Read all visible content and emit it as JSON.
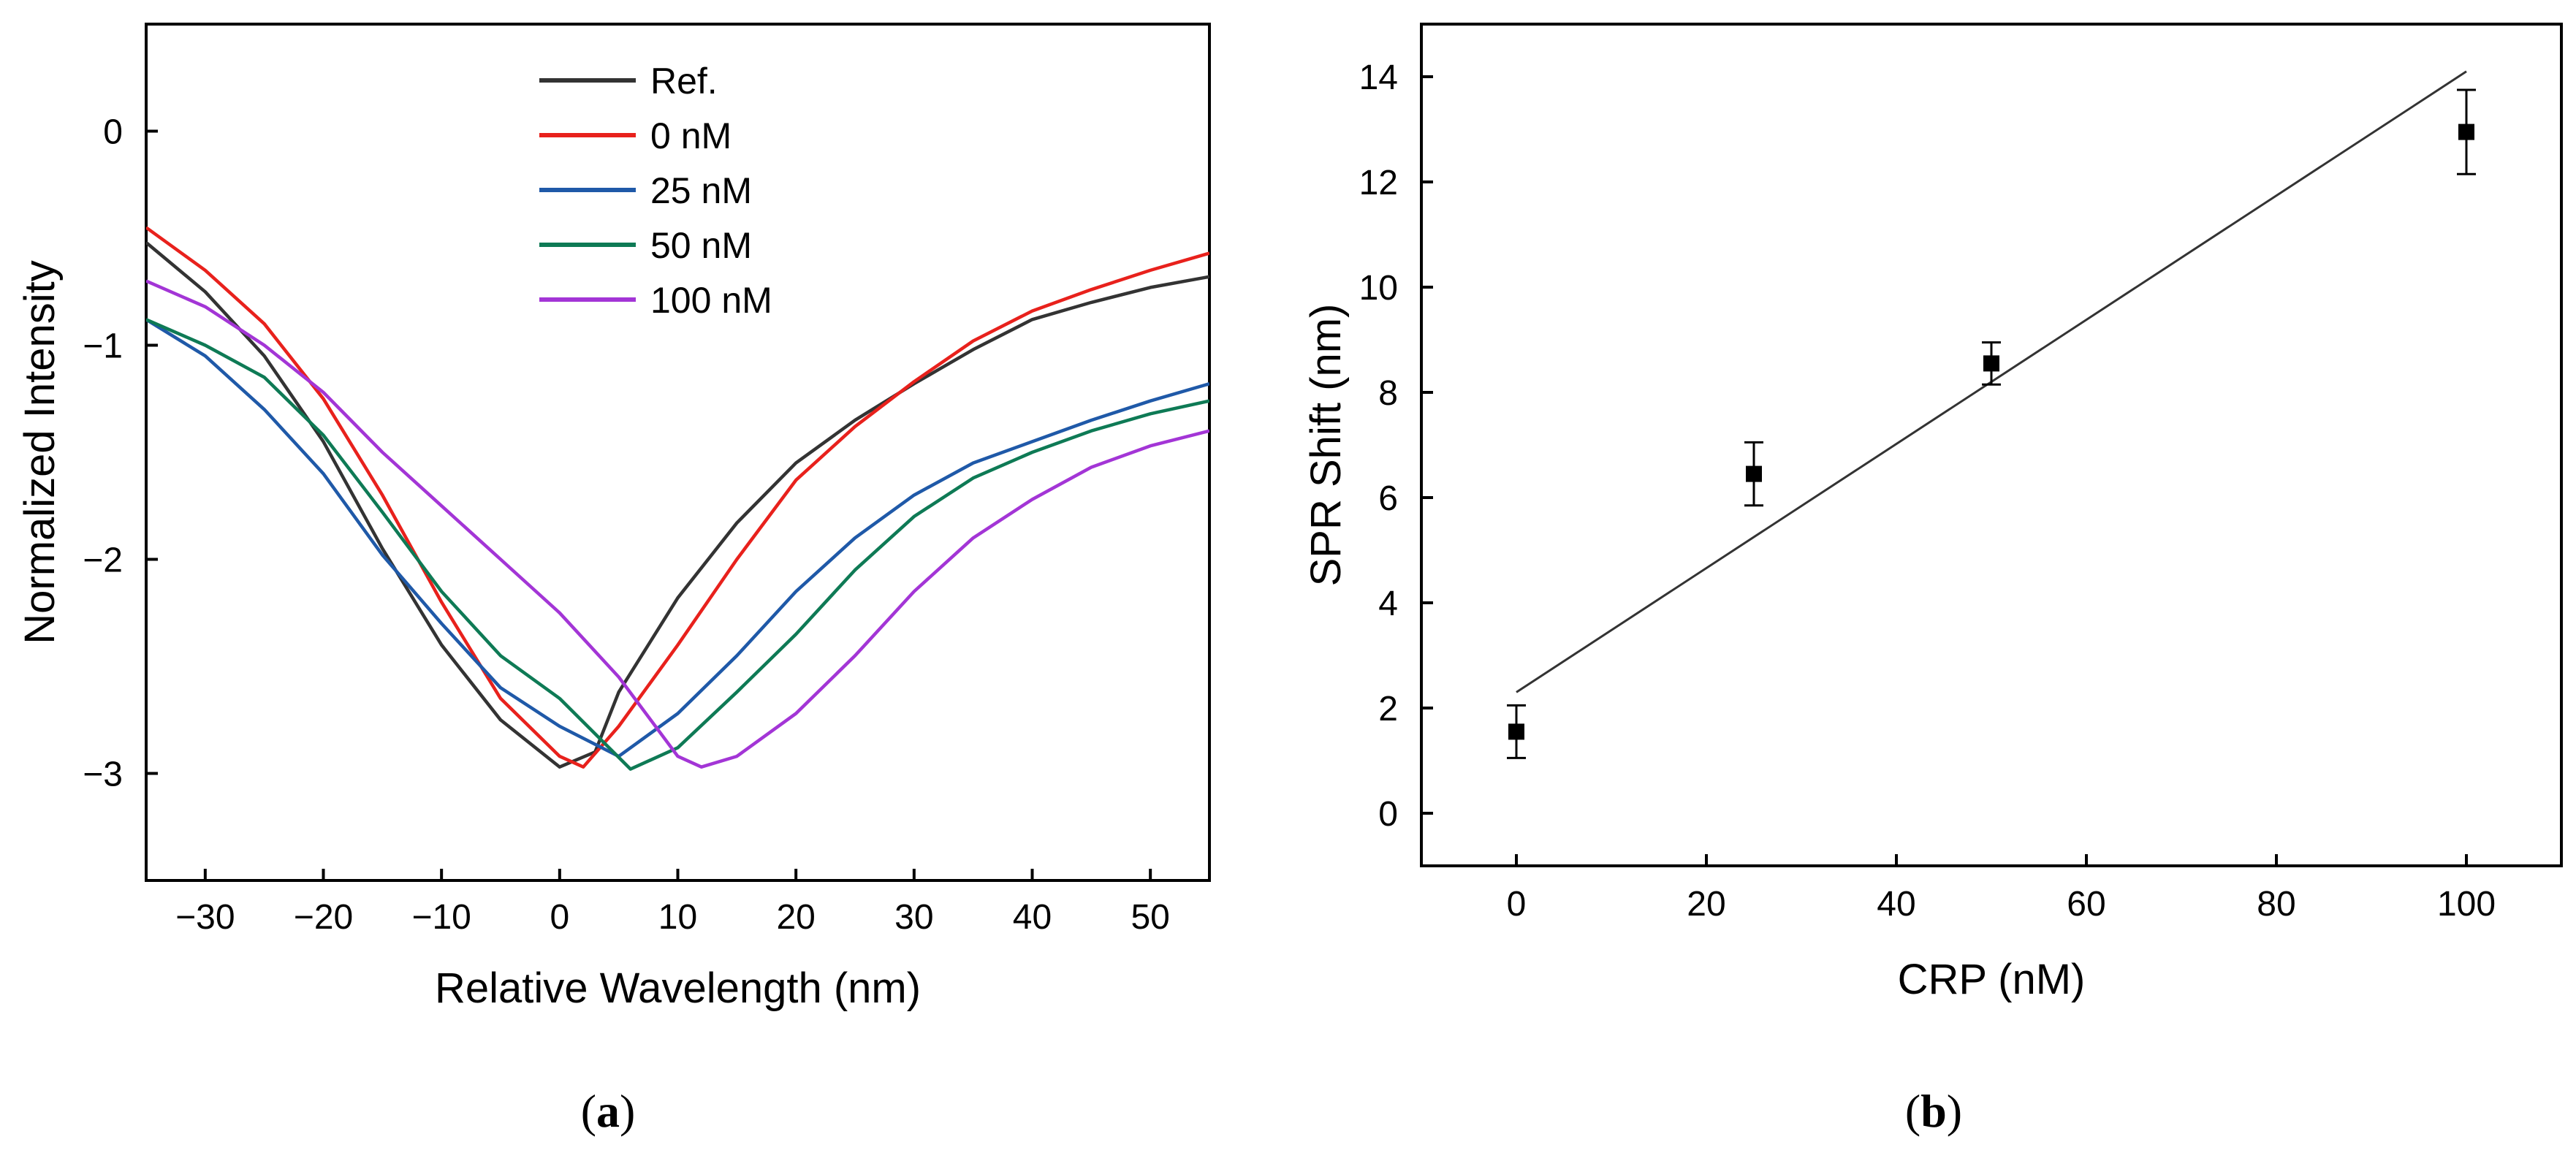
{
  "chart_data": [
    {
      "type": "line",
      "panel_label": "(a)",
      "panel_letter": "a",
      "title": "",
      "xlabel": "Relative Wavelength (nm)",
      "ylabel": "Normalized Intensity",
      "xlim": [
        -35,
        55
      ],
      "ylim": [
        -3.5,
        0.5
      ],
      "xticks": [
        -30,
        -20,
        -10,
        0,
        10,
        20,
        30,
        40,
        50
      ],
      "yticks": [
        -3,
        -2,
        -1,
        0
      ],
      "grid": false,
      "legend_position": "top-center",
      "series": [
        {
          "name": "Ref.",
          "color": "#333333",
          "x": [
            -35,
            -30,
            -25,
            -20,
            -15,
            -10,
            -5,
            0,
            3,
            5,
            10,
            15,
            20,
            25,
            30,
            35,
            40,
            45,
            50,
            55
          ],
          "y": [
            -0.52,
            -0.75,
            -1.05,
            -1.45,
            -1.95,
            -2.4,
            -2.75,
            -2.97,
            -2.9,
            -2.62,
            -2.18,
            -1.83,
            -1.55,
            -1.35,
            -1.18,
            -1.02,
            -0.88,
            -0.8,
            -0.73,
            -0.68
          ]
        },
        {
          "name": "0 nM",
          "color": "#e8211c",
          "x": [
            -35,
            -30,
            -25,
            -20,
            -15,
            -10,
            -5,
            0,
            2,
            5,
            10,
            15,
            20,
            25,
            30,
            35,
            40,
            45,
            50,
            55
          ],
          "y": [
            -0.45,
            -0.65,
            -0.9,
            -1.25,
            -1.7,
            -2.2,
            -2.65,
            -2.92,
            -2.97,
            -2.78,
            -2.4,
            -2.0,
            -1.63,
            -1.38,
            -1.17,
            -0.98,
            -0.84,
            -0.74,
            -0.65,
            -0.57
          ]
        },
        {
          "name": "25 nM",
          "color": "#1f59a8",
          "x": [
            -35,
            -30,
            -25,
            -20,
            -15,
            -10,
            -5,
            0,
            5,
            10,
            15,
            20,
            25,
            30,
            35,
            40,
            45,
            50,
            55
          ],
          "y": [
            -0.88,
            -1.05,
            -1.3,
            -1.6,
            -1.98,
            -2.3,
            -2.6,
            -2.78,
            -2.92,
            -2.72,
            -2.45,
            -2.15,
            -1.9,
            -1.7,
            -1.55,
            -1.45,
            -1.35,
            -1.26,
            -1.18
          ]
        },
        {
          "name": "50 nM",
          "color": "#0e7a55",
          "x": [
            -35,
            -30,
            -25,
            -20,
            -15,
            -10,
            -5,
            0,
            6,
            10,
            15,
            20,
            25,
            30,
            35,
            40,
            45,
            50,
            55
          ],
          "y": [
            -0.88,
            -1.0,
            -1.15,
            -1.42,
            -1.78,
            -2.15,
            -2.45,
            -2.65,
            -2.98,
            -2.88,
            -2.62,
            -2.35,
            -2.05,
            -1.8,
            -1.62,
            -1.5,
            -1.4,
            -1.32,
            -1.26
          ]
        },
        {
          "name": "100 nM",
          "color": "#a335d6",
          "x": [
            -35,
            -30,
            -25,
            -20,
            -15,
            -10,
            -5,
            0,
            5,
            10,
            12,
            15,
            20,
            25,
            30,
            35,
            40,
            45,
            50,
            55
          ],
          "y": [
            -0.7,
            -0.82,
            -1.0,
            -1.22,
            -1.5,
            -1.75,
            -2.0,
            -2.25,
            -2.55,
            -2.92,
            -2.97,
            -2.92,
            -2.72,
            -2.45,
            -2.15,
            -1.9,
            -1.72,
            -1.57,
            -1.47,
            -1.4
          ]
        }
      ]
    },
    {
      "type": "scatter",
      "panel_label": "(b)",
      "panel_letter": "b",
      "title": "",
      "xlabel": "CRP (nM)",
      "ylabel": "SPR Shift (nm)",
      "xlim": [
        -10,
        110
      ],
      "ylim": [
        -1,
        15
      ],
      "xticks": [
        0,
        20,
        40,
        60,
        80,
        100
      ],
      "yticks": [
        0,
        2,
        4,
        6,
        8,
        10,
        12,
        14
      ],
      "grid": false,
      "series": [
        {
          "x": [
            0,
            25,
            50,
            100
          ],
          "y": [
            1.55,
            6.45,
            8.55,
            12.95
          ],
          "error": [
            0.5,
            0.6,
            0.4,
            0.8
          ],
          "color": "#000000"
        }
      ],
      "fit_line": {
        "x": [
          0,
          100
        ],
        "y": [
          2.3,
          14.1
        ],
        "color": "#333333"
      }
    }
  ]
}
